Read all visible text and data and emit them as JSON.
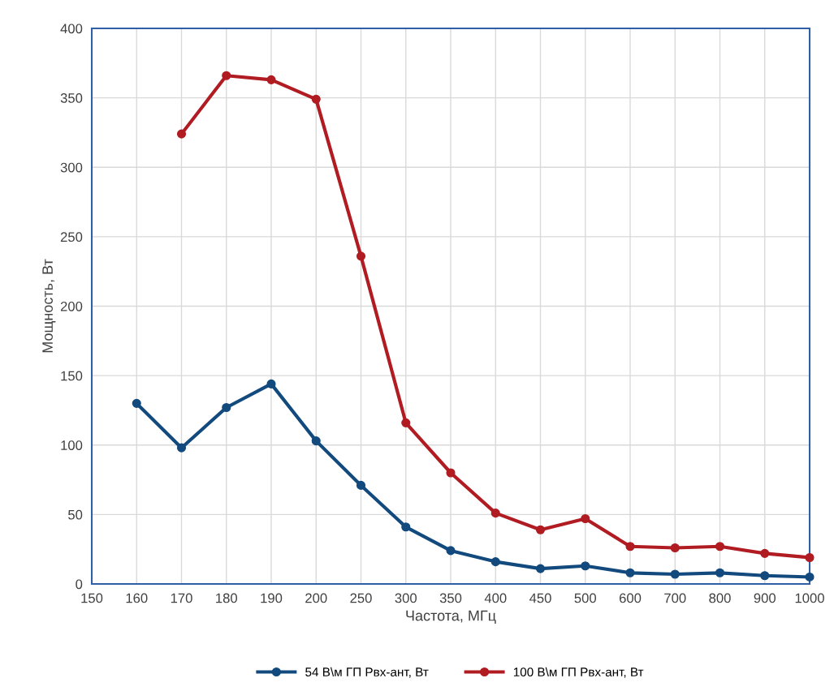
{
  "chart_data": {
    "type": "line",
    "xlabel": "Частота, МГц",
    "ylabel": "Мощность, Вт",
    "categories": [
      "150",
      "160",
      "170",
      "180",
      "190",
      "200",
      "250",
      "300",
      "350",
      "400",
      "450",
      "500",
      "600",
      "700",
      "800",
      "900",
      "1000"
    ],
    "series": [
      {
        "name": "54 В\\м ГП Pвх-ант, Вт",
        "color": "#124a7e",
        "values": [
          null,
          130,
          98,
          127,
          144,
          103,
          71,
          41,
          24,
          16,
          11,
          13,
          8,
          7,
          8,
          6,
          5
        ]
      },
      {
        "name": "100 В\\м ГП Pвх-ант, Вт",
        "color": "#b01c22",
        "values": [
          null,
          null,
          324,
          366,
          363,
          349,
          236,
          116,
          80,
          51,
          39,
          47,
          27,
          26,
          27,
          22,
          19
        ]
      }
    ],
    "ylim": [
      0,
      400
    ],
    "yticks": [
      0,
      50,
      100,
      150,
      200,
      250,
      300,
      350,
      400
    ],
    "grid": true,
    "legend": "bottom",
    "marker": "circle",
    "line_style": "solid"
  }
}
